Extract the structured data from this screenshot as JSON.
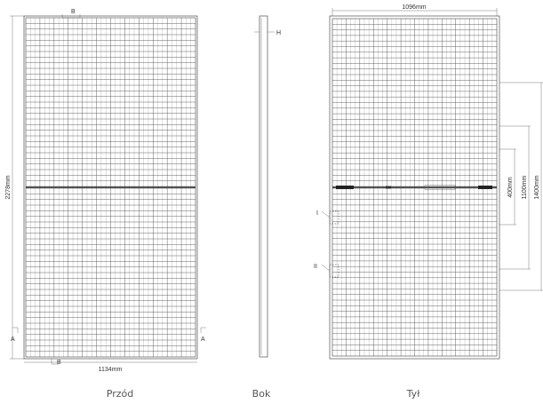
{
  "views": {
    "front": {
      "caption": "Przód",
      "height_label": "2278mm",
      "width_label": "1134mm",
      "section_label": "A",
      "detail_b": "B",
      "detail_b2": "B"
    },
    "side": {
      "caption": "Bok",
      "thickness_label": "H"
    },
    "back": {
      "caption": "Tył",
      "width_label": "1096mm",
      "mount_labels": [
        "400mm",
        "1100mm",
        "1400mm"
      ],
      "detail_labels": [
        "I",
        "II"
      ]
    }
  },
  "colors": {
    "line": "#333333",
    "cells": "#555555",
    "caption": "#555555"
  }
}
